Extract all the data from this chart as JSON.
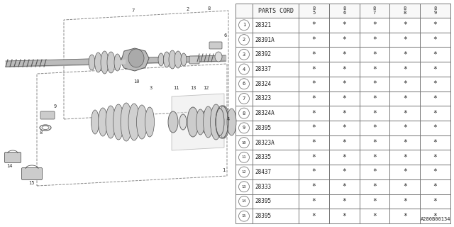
{
  "parts": [
    {
      "num": "1",
      "code": "28321"
    },
    {
      "num": "2",
      "code": "28391A"
    },
    {
      "num": "3",
      "code": "28392"
    },
    {
      "num": "4",
      "code": "28337"
    },
    {
      "num": "6",
      "code": "28324"
    },
    {
      "num": "7",
      "code": "28323"
    },
    {
      "num": "8",
      "code": "28324A"
    },
    {
      "num": "9",
      "code": "28395"
    },
    {
      "num": "10",
      "code": "28323A"
    },
    {
      "num": "11",
      "code": "28335"
    },
    {
      "num": "12",
      "code": "28437"
    },
    {
      "num": "13",
      "code": "28333"
    },
    {
      "num": "14",
      "code": "28395"
    },
    {
      "num": "15",
      "code": "28395"
    }
  ],
  "years": [
    "85",
    "86",
    "87",
    "88",
    "89"
  ],
  "bg_color": "#ffffff",
  "line_color": "#777777",
  "text_color": "#222222",
  "footer": "A280B00134"
}
